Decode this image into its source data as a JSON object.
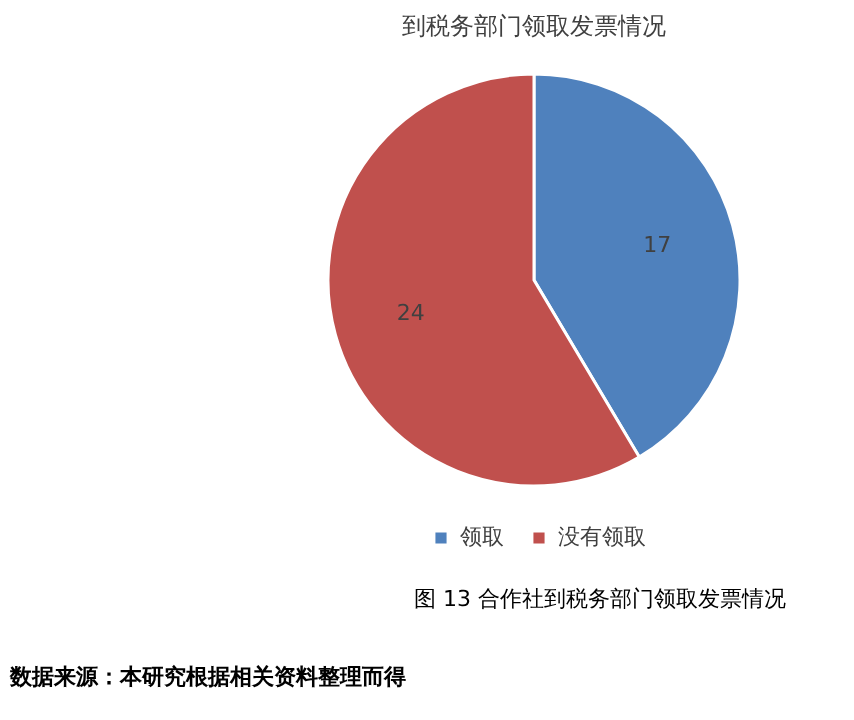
{
  "chart_data": {
    "type": "pie",
    "title": "到税务部门领取发票情况",
    "categories": [
      "领取",
      "没有领取"
    ],
    "values": [
      17,
      24
    ],
    "colors": [
      "#4f81bd",
      "#c0504d"
    ],
    "data_labels": true,
    "legend": "bottom",
    "annotations": [
      "图 13 合作社到税务部门领取发票情况",
      "数据来源：本研究根据相关资料整理而得"
    ]
  }
}
